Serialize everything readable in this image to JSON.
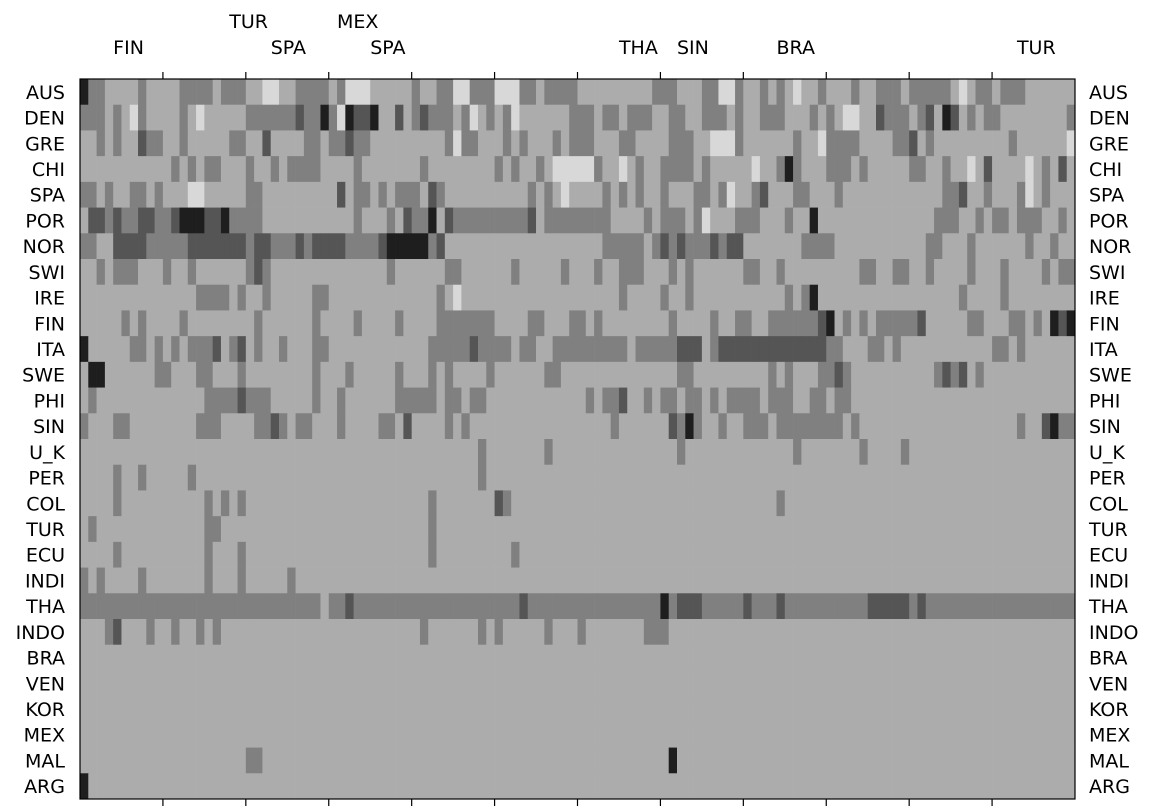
{
  "chart_data": {
    "type": "heatmap",
    "title": "",
    "xlabel": "",
    "ylabel": "",
    "rows": [
      "AUS",
      "DEN",
      "GRE",
      "CHI",
      "SPA",
      "POR",
      "NOR",
      "SWI",
      "IRE",
      "FIN",
      "ITA",
      "SWE",
      "PHI",
      "SIN",
      "U_K",
      "PER",
      "COL",
      "TUR",
      "ECU",
      "INDI",
      "THA",
      "INDO",
      "BRA",
      "VEN",
      "KOR",
      "MEX",
      "MAL",
      "ARG"
    ],
    "top_annotations": [
      {
        "label": "FIN",
        "tier": 0,
        "col": 4
      },
      {
        "label": "TUR",
        "tier": 1,
        "col": 18
      },
      {
        "label": "SPA",
        "tier": 0,
        "col": 23
      },
      {
        "label": "MEX",
        "tier": 1,
        "col": 31
      },
      {
        "label": "SPA",
        "tier": 0,
        "col": 35
      },
      {
        "label": "THA",
        "tier": 0,
        "col": 65
      },
      {
        "label": "SIN",
        "tier": 0,
        "col": 72
      },
      {
        "label": "BRA",
        "tier": 0,
        "col": 84
      },
      {
        "label": "TUR",
        "tier": 0,
        "col": 113
      }
    ],
    "n_columns": 120,
    "level_colors": [
      "#d8d8d8",
      "#acacac",
      "#808080",
      "#555555",
      "#1e1e1e"
    ],
    "grid": false,
    "legend": "none",
    "values": [
      "4221111211112222122211001122221200011111211220022200022122221111111112221112200211212101121112112221222221012212221111112122",
      "2221210211112101111122222232242043341131232221201212011111122212212221122112221211222111212100113222123143121221111111122222",
      "1121211322112111112211311112212232211111111120221112121112122211122111122211000211111121102222111122312111111111211111101000",
      "1111111111121212211121121222211112111111121111111121211210000021101211222212111110112421112221211111221121101311110121312111",
      "2212112212111001111122111111111312212122213211111111112121011112121211211122120112311122111211111111111122311211120121112121",
      "1332322332234443342222111111111112111213224132222222223122222222111121222120111222111211411111111111111222112122122211212222",
      "2211333322222333333323322232333322223444442311111111111111111112222212323222323311111112222111111111112211121111112112111222",
      "1121222111211211111123211111111111111211111122111111211111211121122211121211111122112111111111221122112111121112111121221212",
      "1111111111111122221211211111221111111111111210111111111111111111121111211211111111111212411111111111111111211112111111111111",
      "1111121211112111111112111111211112111121111222222211112211122121111111121111211221122222234121212222231111122111221214344222",
      "4111112212121222312312112111221111111111112222232222122112222222221222223331233333333333332211122121111111111122121111112112",
      "1441111112211122111211111111211121111121112121111211111122111111111111112211111111121211122321111111111232312111111111111112",
      "1211111111111112222322211111211211111122222122122111111111111212231121221221212222122211221221111111111111111111111111111141",
      "2111221111111122211112232122111211112213111121211111111111111111211111132421121122212222222212111111111111111111121134221412",
      "1111111111111111111111111111111111111111111111112111111121111111111111112111111111111121111111211112111111111111111111111111",
      "1111211211111211111111111111111111111111111111112111111111111111111111111111111111111111111111111111111111111111111111111111",
      "1111211111111112121211111111111111111111112111111132111111111111111111111111111111112111111111111111111111111111111111114111",
      "1211111111111112211111111111111111111111112111111111111111111111111111111111111111111111111111111111111111111111111111111111",
      "1111211111111112111211111111111111111111112111111111211111111111111111111111111111111111111111111111111111111111111111111111",
      "2121111211111112111211111211111111111111111111111111111111111111111111111111111111111111111111111111111111111111111111111111",
      "2222222222222222222222222222212232222222222222222222232222222222222222423332222232223222222222233333232222222222222222222222",
      "1112311121121121211111111111111111111111121111112121111121112111111122211111111111111111111111111111111111111111111111111111",
      "1111111111111111111111111111111111111111111111111111111111111111111111111111111111111111111111111111111111111111111111111111",
      "1111111111111111111111111111111111111111111111111111111111111111111111111111111111111111111111111111111111111111111111111111",
      "1111111111111111111111111111111111111111111111111111111111111111111111111111111111111111111111111111111111111111111111111111",
      "1111111111111111111111111111111111111111111111111111111111111111111111111111111111111111111111111111111111111111111111111111",
      "1111111111111111111122111111111111111111111111111111111111111111111111141111111111111111111111111111111111111111111111111111",
      "4111111111111111111111111111111111111111111111111111111111111111111111111111111111111111111111111111111111111111111111111111"
    ]
  }
}
